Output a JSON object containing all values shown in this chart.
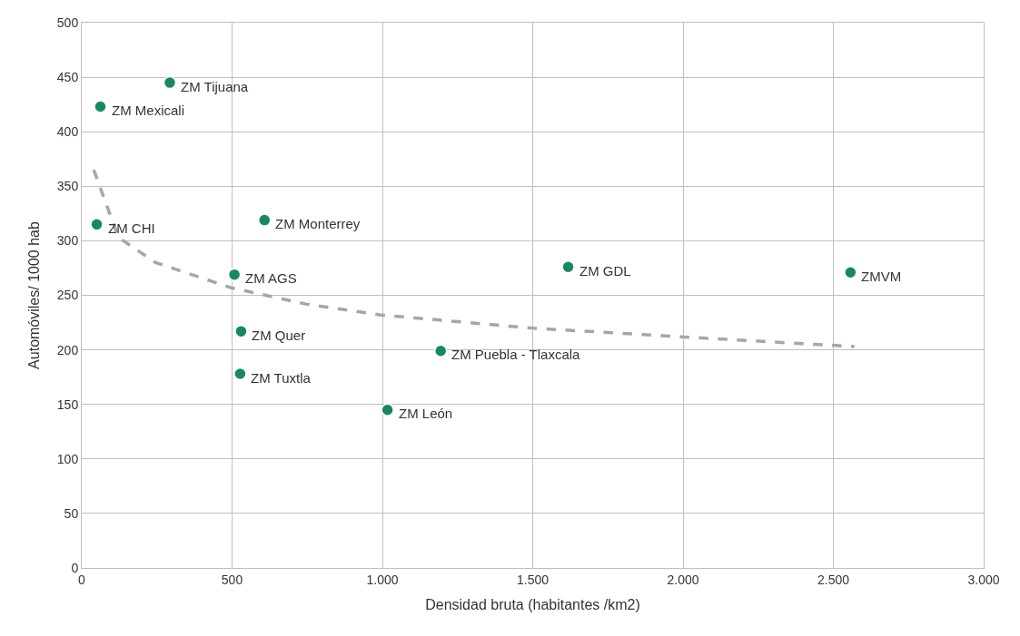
{
  "chart_data": {
    "type": "scatter",
    "xlabel": "Densidad bruta (habitantes /km2)",
    "ylabel": "Automóviles/ 1000 hab",
    "xlim": [
      0,
      3000
    ],
    "xticks": [
      0,
      500,
      {
        "value": 1000,
        "label": "1.000"
      },
      {
        "value": 1500,
        "label": "1.500"
      },
      {
        "value": 2000,
        "label": "2.000"
      },
      {
        "value": 2500,
        "label": "2.500"
      },
      {
        "value": 3000,
        "label": "3.000"
      }
    ],
    "ylim": [
      0,
      500
    ],
    "yticks": [
      0,
      50,
      100,
      150,
      200,
      250,
      300,
      350,
      400,
      450,
      500
    ],
    "grid": true,
    "series": [
      {
        "marker": "circle",
        "color": "#168a5c",
        "x": [
          293,
          62,
          50,
          608,
          508,
          530,
          527,
          1017,
          1194,
          1618,
          2557
        ],
        "values": [
          445,
          423,
          315,
          319,
          269,
          217,
          178,
          145,
          199,
          276,
          271
        ]
      },
      {
        "type": "line",
        "marker": "none",
        "line_style": "dashed",
        "color": "#a6a6a6",
        "x": [
          40,
          122,
          246,
          496,
          745,
          995,
          1494,
          1993,
          2570
        ],
        "values": [
          365,
          303,
          280,
          257,
          242,
          232,
          220,
          212,
          203
        ]
      }
    ],
    "annotations": [
      {
        "text": "ZM Tijuana",
        "x": 293,
        "y": 445
      },
      {
        "text": "ZM Mexicali",
        "x": 62,
        "y": 423
      },
      {
        "text": "ZM CHI",
        "x": 50,
        "y": 315
      },
      {
        "text": "ZM Monterrey",
        "x": 608,
        "y": 319
      },
      {
        "text": "ZM AGS",
        "x": 508,
        "y": 269
      },
      {
        "text": "ZM Quer",
        "x": 530,
        "y": 217
      },
      {
        "text": "ZM Tuxtla",
        "x": 527,
        "y": 178
      },
      {
        "text": "ZM León",
        "x": 1017,
        "y": 145
      },
      {
        "text": "ZM Puebla - Tlaxcala",
        "x": 1194,
        "y": 199
      },
      {
        "text": "ZM GDL",
        "x": 1618,
        "y": 276
      },
      {
        "text": "ZMVM",
        "x": 2557,
        "y": 271
      }
    ]
  }
}
